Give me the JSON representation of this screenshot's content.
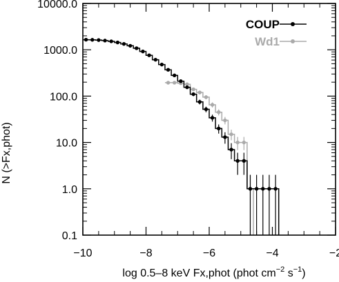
{
  "chart_data": {
    "type": "line",
    "xlabel": "log 0.5–8 keV Fx,phot (phot cm",
    "xlabel_sup1": "−2",
    "xlabel_mid": " s",
    "xlabel_sup2": "−1",
    "xlabel_end": ")",
    "ylabel": "N (>Fx,phot)",
    "xlim": [
      -10,
      -2
    ],
    "ylim": [
      0.1,
      10000
    ],
    "yscale": "log",
    "x_ticks": [
      -10,
      -8,
      -6,
      -4,
      -2
    ],
    "x_tick_labels": [
      "−10",
      "−8",
      "−6",
      "−4",
      "−2"
    ],
    "y_ticks": [
      0.1,
      1,
      10,
      100,
      1000,
      10000
    ],
    "y_tick_labels": [
      "0.1",
      "1.0",
      "10.0",
      "100.0",
      "1000.0",
      "10000.0"
    ],
    "legend_position": "top-right",
    "series": [
      {
        "name": "COUP",
        "color": "#000000",
        "x": [
          -9.9,
          -9.7,
          -9.5,
          -9.3,
          -9.1,
          -8.9,
          -8.7,
          -8.5,
          -8.3,
          -8.1,
          -7.9,
          -7.7,
          -7.5,
          -7.3,
          -7.1,
          -6.9,
          -6.7,
          -6.5,
          -6.3,
          -6.1,
          -5.9,
          -5.7,
          -5.5,
          -5.3,
          -5.1,
          -4.9,
          -4.7,
          -4.5,
          -4.3,
          -4.1,
          -3.9
        ],
        "y": [
          1650,
          1640,
          1620,
          1580,
          1520,
          1440,
          1340,
          1220,
          1080,
          920,
          760,
          610,
          480,
          370,
          280,
          210,
          155,
          110,
          75,
          52,
          34,
          20,
          13,
          7,
          4,
          4,
          1,
          1,
          1,
          1,
          1
        ]
      },
      {
        "name": "Wd1",
        "color": "#aaaaaa",
        "x": [
          -7.3,
          -7.1,
          -6.9,
          -6.7,
          -6.5,
          -6.3,
          -6.1,
          -5.9,
          -5.7,
          -5.5,
          -5.3,
          -5.1,
          -4.9,
          -4.7
        ],
        "y": [
          195,
          195,
          190,
          180,
          140,
          120,
          95,
          65,
          45,
          30,
          15,
          10,
          10,
          1
        ]
      }
    ]
  }
}
